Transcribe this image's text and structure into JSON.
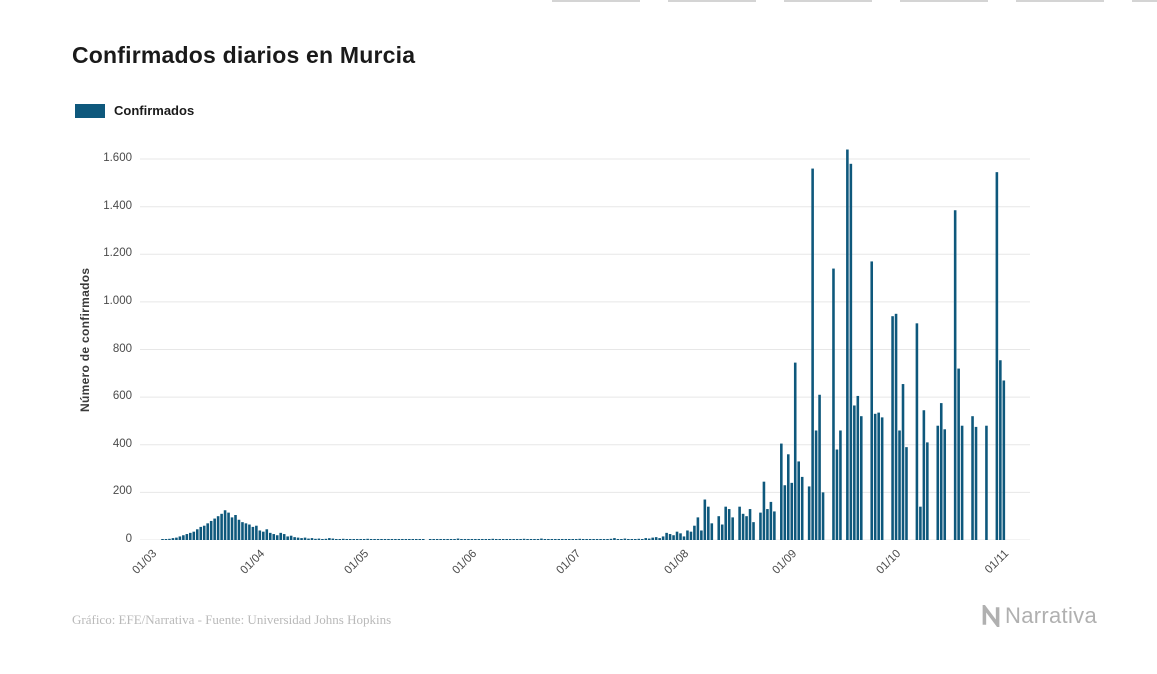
{
  "header": {
    "title": "Confirmados diarios en Murcia"
  },
  "legend": {
    "label": "Confirmados",
    "color": "#0e587c"
  },
  "footer": {
    "credit": "Gráfico: EFE/Narrativa - Fuente: Universidad Johns Hopkins",
    "brand": "Narrativa"
  },
  "chart_data": {
    "type": "bar",
    "title": "Confirmados diarios en Murcia",
    "xlabel": "",
    "ylabel": "Número de confirmados",
    "legend_entries": [
      "Confirmados"
    ],
    "bar_color": "#0e587c",
    "grid": "horizontal",
    "ylim": [
      0,
      1680
    ],
    "x_range": [
      "01/03",
      "01/11"
    ],
    "x_unit": "day",
    "y_ticks": [
      {
        "value": 0,
        "label": "0"
      },
      {
        "value": 200,
        "label": "200"
      },
      {
        "value": 400,
        "label": "400"
      },
      {
        "value": 600,
        "label": "600"
      },
      {
        "value": 800,
        "label": "800"
      },
      {
        "value": 1000,
        "label": "1.000"
      },
      {
        "value": 1200,
        "label": "1.200"
      },
      {
        "value": 1400,
        "label": "1.400"
      },
      {
        "value": 1600,
        "label": "1.600"
      }
    ],
    "x_ticks": [
      {
        "index": 0,
        "label": "01/03"
      },
      {
        "index": 31,
        "label": "01/04"
      },
      {
        "index": 61,
        "label": "01/05"
      },
      {
        "index": 92,
        "label": "01/06"
      },
      {
        "index": 122,
        "label": "01/07"
      },
      {
        "index": 153,
        "label": "01/08"
      },
      {
        "index": 184,
        "label": "01/09"
      },
      {
        "index": 214,
        "label": "01/10"
      },
      {
        "index": 245,
        "label": "01/11"
      }
    ],
    "values": [
      0,
      2,
      3,
      5,
      8,
      10,
      15,
      20,
      25,
      30,
      35,
      45,
      55,
      60,
      70,
      80,
      90,
      100,
      110,
      125,
      115,
      95,
      105,
      85,
      75,
      70,
      65,
      55,
      60,
      40,
      35,
      45,
      30,
      25,
      20,
      30,
      25,
      15,
      18,
      12,
      10,
      8,
      10,
      6,
      8,
      5,
      6,
      4,
      5,
      8,
      6,
      4,
      3,
      5,
      4,
      3,
      2,
      4,
      3,
      2,
      5,
      3,
      2,
      4,
      2,
      1,
      3,
      2,
      1,
      2,
      3,
      1,
      2,
      1,
      2,
      3,
      1,
      0,
      2,
      1,
      1,
      2,
      1,
      3,
      2,
      1,
      6,
      2,
      1,
      2,
      1,
      2,
      2,
      1,
      3,
      2,
      5,
      1,
      2,
      4,
      2,
      1,
      3,
      2,
      1,
      5,
      2,
      3,
      1,
      2,
      6,
      2,
      1,
      3,
      2,
      1,
      4,
      2,
      3,
      1,
      2,
      5,
      1,
      2,
      3,
      1,
      2,
      4,
      2,
      3,
      5,
      8,
      3,
      2,
      6,
      4,
      3,
      2,
      5,
      3,
      8,
      6,
      10,
      12,
      8,
      15,
      30,
      25,
      20,
      35,
      28,
      15,
      40,
      35,
      60,
      95,
      40,
      170,
      140,
      70,
      0,
      100,
      65,
      140,
      130,
      95,
      0,
      140,
      110,
      100,
      130,
      75,
      0,
      115,
      245,
      130,
      160,
      120,
      0,
      405,
      230,
      360,
      240,
      745,
      330,
      265,
      0,
      225,
      1560,
      460,
      610,
      200,
      0,
      0,
      1140,
      380,
      460,
      0,
      1640,
      1580,
      565,
      605,
      520,
      0,
      0,
      1170,
      530,
      535,
      515,
      0,
      0,
      940,
      950,
      460,
      655,
      390,
      0,
      0,
      910,
      140,
      545,
      410,
      0,
      0,
      480,
      575,
      465,
      0,
      0,
      1385,
      720,
      480,
      0,
      0,
      520,
      475,
      0,
      0,
      480,
      0,
      0,
      1545,
      755,
      670,
      0,
      0
    ]
  }
}
